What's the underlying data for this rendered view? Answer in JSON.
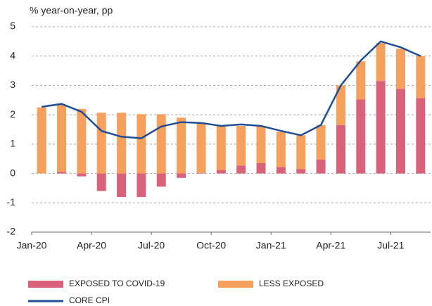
{
  "chart_data": {
    "type": "bar",
    "stacked": true,
    "y_axis_label": "% year-on-year, pp",
    "categories": [
      "Jan-20",
      null,
      null,
      "Apr-20",
      null,
      null,
      "Jul-20",
      null,
      null,
      "Oct-20",
      null,
      null,
      "Jan-21",
      null,
      null,
      "Apr-21",
      null,
      null,
      "Jul-21",
      null
    ],
    "series": [
      {
        "name": "EXPOSED TO COVID-19",
        "color": "#d9627a",
        "values": [
          0,
          0.05,
          -0.1,
          -0.6,
          -0.8,
          -0.8,
          -0.45,
          -0.15,
          0.02,
          0.12,
          0.27,
          0.35,
          0.22,
          0.15,
          0.47,
          1.65,
          2.52,
          3.15,
          2.88,
          2.57
        ]
      },
      {
        "name": "LESS EXPOSED",
        "color": "#f5a05c",
        "values": [
          2.25,
          2.3,
          2.2,
          2.07,
          2.07,
          2.02,
          2.02,
          1.9,
          1.72,
          1.5,
          1.35,
          1.25,
          1.2,
          1.15,
          1.18,
          1.35,
          1.3,
          1.3,
          1.37,
          1.43
        ]
      },
      {
        "name": "CORE CPI",
        "color": "#1f4e96",
        "type": "line",
        "values": [
          2.27,
          2.37,
          2.1,
          1.45,
          1.25,
          1.2,
          1.6,
          1.75,
          1.72,
          1.62,
          1.67,
          1.62,
          1.45,
          1.3,
          1.65,
          3.0,
          3.85,
          4.5,
          4.3,
          4.0
        ]
      }
    ],
    "ylim": [
      -2,
      5
    ],
    "yticks": [
      -2,
      -1,
      0,
      1,
      2,
      3,
      4,
      5
    ],
    "grid": true,
    "legend": "bottom"
  }
}
